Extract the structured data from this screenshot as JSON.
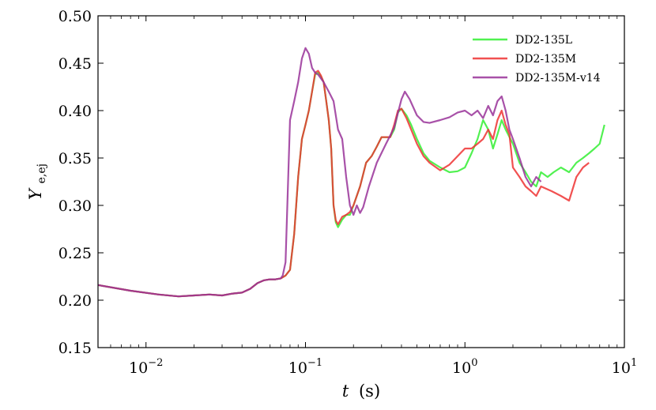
{
  "chart_data": {
    "type": "line",
    "xscale": "log",
    "xlim": [
      0.005,
      10
    ],
    "ylim": [
      0.15,
      0.5
    ],
    "xlabel_var": "t",
    "xlabel_unit": "(s)",
    "ylabel_main": "Y",
    "ylabel_sub": "e,ej",
    "grid": false,
    "legend_position": "top-right",
    "x_ticks": [
      {
        "value": 0.01,
        "base": "10",
        "exp": "−2"
      },
      {
        "value": 0.1,
        "base": "10",
        "exp": "−1"
      },
      {
        "value": 1,
        "base": "10",
        "exp": "0"
      },
      {
        "value": 10,
        "base": "10",
        "exp": "1"
      }
    ],
    "y_ticks": [
      {
        "value": 0.15,
        "label": "0.15"
      },
      {
        "value": 0.2,
        "label": "0.20"
      },
      {
        "value": 0.25,
        "label": "0.25"
      },
      {
        "value": 0.3,
        "label": "0.30"
      },
      {
        "value": 0.35,
        "label": "0.35"
      },
      {
        "value": 0.4,
        "label": "0.40"
      },
      {
        "value": 0.45,
        "label": "0.45"
      },
      {
        "value": 0.5,
        "label": "0.50"
      }
    ],
    "series": [
      {
        "name": "DD2-135L",
        "color": "#33ee33",
        "points": [
          [
            0.005,
            0.216
          ],
          [
            0.008,
            0.21
          ],
          [
            0.012,
            0.206
          ],
          [
            0.016,
            0.204
          ],
          [
            0.02,
            0.205
          ],
          [
            0.025,
            0.206
          ],
          [
            0.03,
            0.205
          ],
          [
            0.035,
            0.207
          ],
          [
            0.04,
            0.208
          ],
          [
            0.045,
            0.212
          ],
          [
            0.05,
            0.218
          ],
          [
            0.055,
            0.221
          ],
          [
            0.06,
            0.222
          ],
          [
            0.065,
            0.222
          ],
          [
            0.07,
            0.223
          ],
          [
            0.075,
            0.226
          ],
          [
            0.08,
            0.232
          ],
          [
            0.085,
            0.27
          ],
          [
            0.09,
            0.33
          ],
          [
            0.095,
            0.37
          ],
          [
            0.1,
            0.385
          ],
          [
            0.105,
            0.4
          ],
          [
            0.11,
            0.42
          ],
          [
            0.115,
            0.438
          ],
          [
            0.12,
            0.44
          ],
          [
            0.125,
            0.436
          ],
          [
            0.13,
            0.43
          ],
          [
            0.135,
            0.41
          ],
          [
            0.14,
            0.39
          ],
          [
            0.145,
            0.36
          ],
          [
            0.15,
            0.3
          ],
          [
            0.155,
            0.282
          ],
          [
            0.16,
            0.277
          ],
          [
            0.17,
            0.285
          ],
          [
            0.18,
            0.29
          ],
          [
            0.19,
            0.29
          ],
          [
            0.2,
            0.3
          ],
          [
            0.22,
            0.32
          ],
          [
            0.24,
            0.345
          ],
          [
            0.26,
            0.352
          ],
          [
            0.28,
            0.362
          ],
          [
            0.3,
            0.372
          ],
          [
            0.32,
            0.372
          ],
          [
            0.34,
            0.372
          ],
          [
            0.36,
            0.38
          ],
          [
            0.38,
            0.398
          ],
          [
            0.4,
            0.402
          ],
          [
            0.43,
            0.395
          ],
          [
            0.46,
            0.385
          ],
          [
            0.5,
            0.37
          ],
          [
            0.55,
            0.355
          ],
          [
            0.6,
            0.347
          ],
          [
            0.7,
            0.34
          ],
          [
            0.8,
            0.335
          ],
          [
            0.9,
            0.336
          ],
          [
            1.0,
            0.34
          ],
          [
            1.1,
            0.355
          ],
          [
            1.2,
            0.37
          ],
          [
            1.3,
            0.39
          ],
          [
            1.4,
            0.38
          ],
          [
            1.5,
            0.36
          ],
          [
            1.6,
            0.375
          ],
          [
            1.7,
            0.39
          ],
          [
            1.8,
            0.38
          ],
          [
            2.0,
            0.365
          ],
          [
            2.2,
            0.345
          ],
          [
            2.4,
            0.335
          ],
          [
            2.6,
            0.325
          ],
          [
            2.8,
            0.32
          ],
          [
            3.0,
            0.335
          ],
          [
            3.3,
            0.33
          ],
          [
            3.6,
            0.335
          ],
          [
            4.0,
            0.34
          ],
          [
            4.5,
            0.335
          ],
          [
            5.0,
            0.345
          ],
          [
            5.5,
            0.35
          ],
          [
            6.0,
            0.355
          ],
          [
            6.5,
            0.36
          ],
          [
            7.0,
            0.365
          ],
          [
            7.5,
            0.385
          ]
        ]
      },
      {
        "name": "DD2-135M",
        "color": "#ee3333",
        "points": [
          [
            0.005,
            0.216
          ],
          [
            0.008,
            0.21
          ],
          [
            0.012,
            0.206
          ],
          [
            0.016,
            0.204
          ],
          [
            0.02,
            0.205
          ],
          [
            0.025,
            0.206
          ],
          [
            0.03,
            0.205
          ],
          [
            0.035,
            0.207
          ],
          [
            0.04,
            0.208
          ],
          [
            0.045,
            0.212
          ],
          [
            0.05,
            0.218
          ],
          [
            0.055,
            0.221
          ],
          [
            0.06,
            0.222
          ],
          [
            0.065,
            0.222
          ],
          [
            0.07,
            0.223
          ],
          [
            0.075,
            0.226
          ],
          [
            0.08,
            0.232
          ],
          [
            0.085,
            0.27
          ],
          [
            0.09,
            0.33
          ],
          [
            0.095,
            0.37
          ],
          [
            0.1,
            0.385
          ],
          [
            0.105,
            0.4
          ],
          [
            0.11,
            0.42
          ],
          [
            0.115,
            0.44
          ],
          [
            0.12,
            0.442
          ],
          [
            0.125,
            0.437
          ],
          [
            0.13,
            0.43
          ],
          [
            0.135,
            0.41
          ],
          [
            0.14,
            0.39
          ],
          [
            0.145,
            0.36
          ],
          [
            0.15,
            0.3
          ],
          [
            0.155,
            0.284
          ],
          [
            0.16,
            0.28
          ],
          [
            0.17,
            0.288
          ],
          [
            0.18,
            0.29
          ],
          [
            0.19,
            0.293
          ],
          [
            0.2,
            0.3
          ],
          [
            0.22,
            0.32
          ],
          [
            0.24,
            0.345
          ],
          [
            0.26,
            0.352
          ],
          [
            0.28,
            0.362
          ],
          [
            0.3,
            0.372
          ],
          [
            0.32,
            0.372
          ],
          [
            0.34,
            0.372
          ],
          [
            0.36,
            0.385
          ],
          [
            0.38,
            0.4
          ],
          [
            0.4,
            0.402
          ],
          [
            0.43,
            0.392
          ],
          [
            0.46,
            0.38
          ],
          [
            0.5,
            0.365
          ],
          [
            0.55,
            0.352
          ],
          [
            0.6,
            0.345
          ],
          [
            0.7,
            0.337
          ],
          [
            0.8,
            0.343
          ],
          [
            0.9,
            0.352
          ],
          [
            1.0,
            0.36
          ],
          [
            1.1,
            0.36
          ],
          [
            1.2,
            0.365
          ],
          [
            1.3,
            0.37
          ],
          [
            1.4,
            0.38
          ],
          [
            1.5,
            0.37
          ],
          [
            1.6,
            0.39
          ],
          [
            1.7,
            0.4
          ],
          [
            1.8,
            0.385
          ],
          [
            1.9,
            0.375
          ],
          [
            2.0,
            0.34
          ],
          [
            2.2,
            0.33
          ],
          [
            2.4,
            0.32
          ],
          [
            2.6,
            0.315
          ],
          [
            2.8,
            0.31
          ],
          [
            3.0,
            0.32
          ],
          [
            3.5,
            0.315
          ],
          [
            4.0,
            0.31
          ],
          [
            4.5,
            0.305
          ],
          [
            5.0,
            0.33
          ],
          [
            5.5,
            0.34
          ],
          [
            6.0,
            0.345
          ]
        ]
      },
      {
        "name": "DD2-135M-v14",
        "color": "#993399",
        "points": [
          [
            0.005,
            0.216
          ],
          [
            0.008,
            0.21
          ],
          [
            0.012,
            0.206
          ],
          [
            0.016,
            0.204
          ],
          [
            0.02,
            0.205
          ],
          [
            0.025,
            0.206
          ],
          [
            0.03,
            0.205
          ],
          [
            0.035,
            0.207
          ],
          [
            0.04,
            0.208
          ],
          [
            0.045,
            0.212
          ],
          [
            0.05,
            0.218
          ],
          [
            0.055,
            0.221
          ],
          [
            0.06,
            0.222
          ],
          [
            0.065,
            0.222
          ],
          [
            0.07,
            0.223
          ],
          [
            0.072,
            0.226
          ],
          [
            0.075,
            0.24
          ],
          [
            0.08,
            0.39
          ],
          [
            0.085,
            0.41
          ],
          [
            0.09,
            0.43
          ],
          [
            0.095,
            0.455
          ],
          [
            0.1,
            0.466
          ],
          [
            0.105,
            0.46
          ],
          [
            0.11,
            0.445
          ],
          [
            0.115,
            0.44
          ],
          [
            0.12,
            0.438
          ],
          [
            0.13,
            0.43
          ],
          [
            0.14,
            0.42
          ],
          [
            0.15,
            0.41
          ],
          [
            0.16,
            0.38
          ],
          [
            0.17,
            0.37
          ],
          [
            0.18,
            0.33
          ],
          [
            0.19,
            0.3
          ],
          [
            0.2,
            0.29
          ],
          [
            0.21,
            0.3
          ],
          [
            0.22,
            0.292
          ],
          [
            0.23,
            0.298
          ],
          [
            0.25,
            0.32
          ],
          [
            0.28,
            0.345
          ],
          [
            0.32,
            0.365
          ],
          [
            0.36,
            0.382
          ],
          [
            0.4,
            0.412
          ],
          [
            0.42,
            0.42
          ],
          [
            0.45,
            0.412
          ],
          [
            0.5,
            0.395
          ],
          [
            0.55,
            0.388
          ],
          [
            0.6,
            0.387
          ],
          [
            0.7,
            0.39
          ],
          [
            0.8,
            0.393
          ],
          [
            0.9,
            0.398
          ],
          [
            1.0,
            0.4
          ],
          [
            1.1,
            0.395
          ],
          [
            1.2,
            0.4
          ],
          [
            1.3,
            0.392
          ],
          [
            1.4,
            0.405
          ],
          [
            1.5,
            0.395
          ],
          [
            1.6,
            0.41
          ],
          [
            1.7,
            0.415
          ],
          [
            1.8,
            0.4
          ],
          [
            1.9,
            0.38
          ],
          [
            2.0,
            0.37
          ],
          [
            2.2,
            0.35
          ],
          [
            2.4,
            0.33
          ],
          [
            2.6,
            0.32
          ],
          [
            2.8,
            0.33
          ],
          [
            3.0,
            0.325
          ]
        ]
      }
    ]
  }
}
